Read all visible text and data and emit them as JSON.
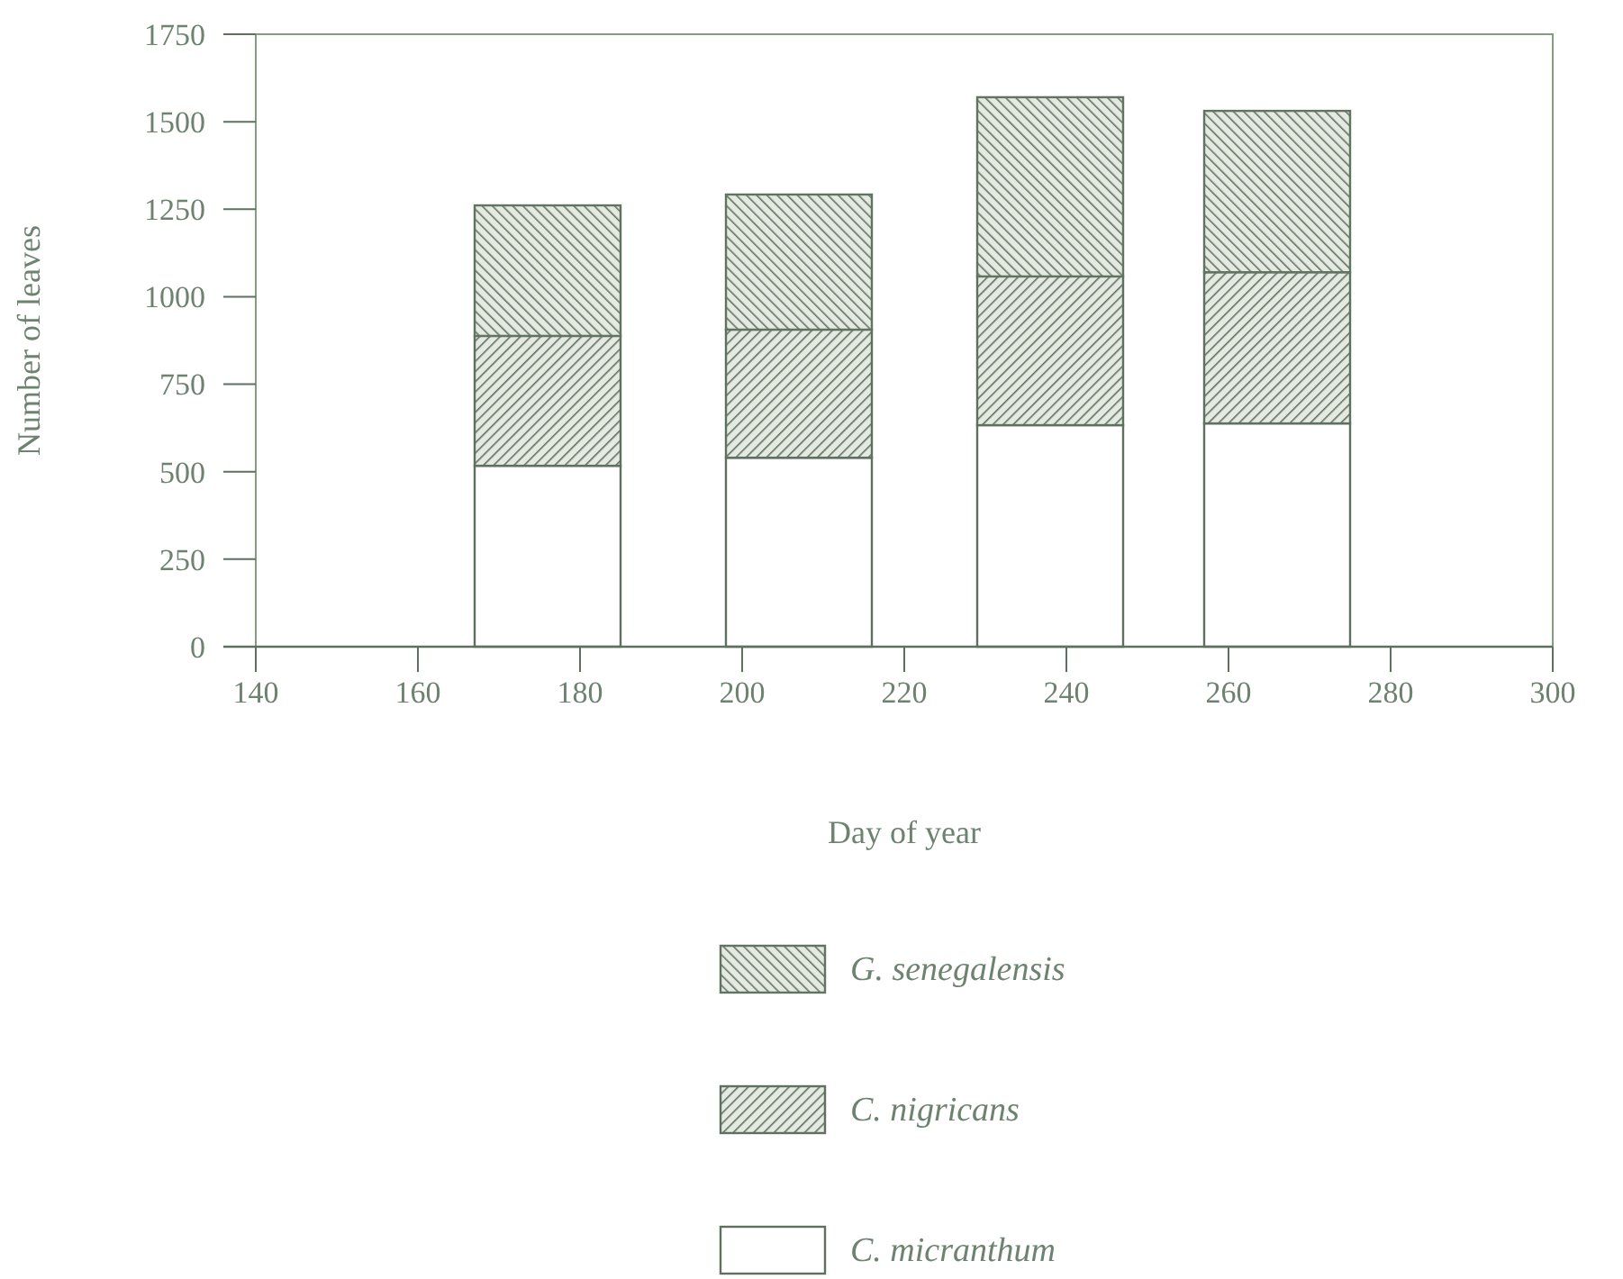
{
  "chart_data": {
    "type": "bar",
    "stacked": true,
    "xlabel": "Day of year",
    "ylabel": "Number of leaves",
    "x": [
      176,
      207,
      238,
      266
    ],
    "series": [
      {
        "name": "C. micranthum",
        "color": "#ffffff",
        "values": [
          517,
          540,
          633,
          638
        ]
      },
      {
        "name": "C. nigricans",
        "color": "#5f7060",
        "values": [
          371,
          366,
          425,
          432
        ]
      },
      {
        "name": "G. senegalensis",
        "color": "#627362",
        "values": [
          373,
          386,
          512,
          461
        ]
      }
    ],
    "xlim": [
      140,
      300
    ],
    "xticks": [
      140,
      160,
      180,
      200,
      220,
      240,
      260,
      280,
      300
    ],
    "ylim": [
      0,
      1750
    ],
    "yticks": [
      0,
      250,
      500,
      750,
      1000,
      1250,
      1500,
      1750
    ],
    "grid": false,
    "legend": "bottom"
  }
}
